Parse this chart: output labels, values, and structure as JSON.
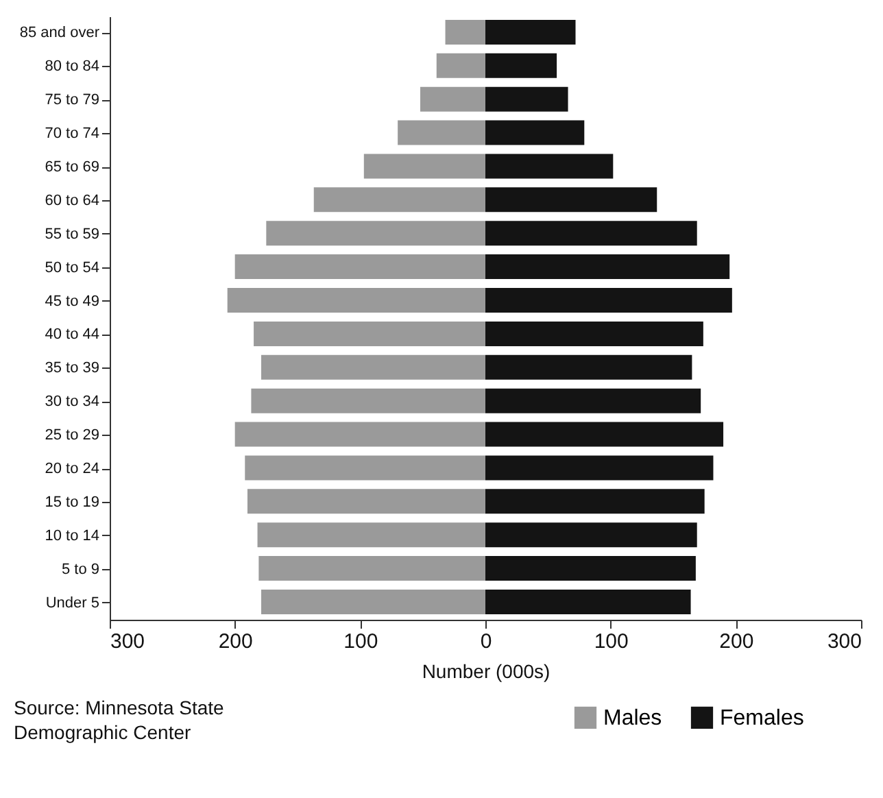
{
  "chart_data": {
    "type": "bar",
    "orientation": "horizontal",
    "stacked": true,
    "xlabel": "Number (000s)",
    "categories": [
      "85 and over",
      "80 to 84",
      "75 to 79",
      "70 to 74",
      "65 to 69",
      "60 to 64",
      "55 to 59",
      "50 to 54",
      "45 to 49",
      "40 to 44",
      "35 to 39",
      "30 to 34",
      "25 to 29",
      "20 to 24",
      "15 to 19",
      "10 to 14",
      "5 to 9",
      "Under 5"
    ],
    "series": [
      {
        "name": "Males",
        "color": "#9a9a9a",
        "values": [
          -32,
          -39,
          -52,
          -70,
          -97,
          -137,
          -175,
          -200,
          -206,
          -185,
          -179,
          -187,
          -200,
          -192,
          -190,
          -182,
          -181,
          -179
        ]
      },
      {
        "name": "Females",
        "color": "#141414",
        "values": [
          72,
          57,
          66,
          79,
          102,
          137,
          169,
          195,
          197,
          174,
          165,
          172,
          190,
          182,
          175,
          169,
          168,
          164
        ]
      }
    ],
    "xlim": [
      -300,
      300
    ],
    "xticks": [
      {
        "value": -300,
        "label": "300"
      },
      {
        "value": -200,
        "label": "200"
      },
      {
        "value": -100,
        "label": "100"
      },
      0,
      100,
      200,
      300
    ],
    "legend": "bottom right",
    "annotations": [
      "Source: Minnesota State Demographic Center"
    ]
  }
}
